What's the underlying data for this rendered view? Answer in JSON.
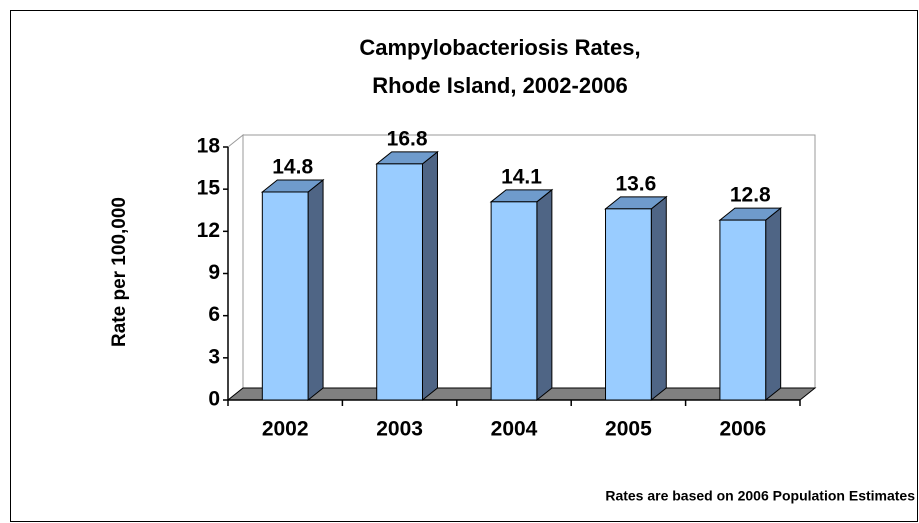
{
  "chart_data": {
    "type": "bar3d",
    "title": "Campylobacteriosis Rates,",
    "subtitle": "Rhode Island, 2002-2006",
    "y_label": "Rate per 100,000",
    "note": "Rates are based on 2006 Population Estimates",
    "categories": [
      "2002",
      "2003",
      "2004",
      "2005",
      "2006"
    ],
    "values": [
      14.8,
      16.8,
      14.1,
      13.6,
      12.8
    ],
    "color": "#99ccff",
    "ylim": [
      0,
      18
    ],
    "yticks": [
      0,
      3,
      6,
      9,
      12,
      15,
      18
    ],
    "grid": false
  }
}
